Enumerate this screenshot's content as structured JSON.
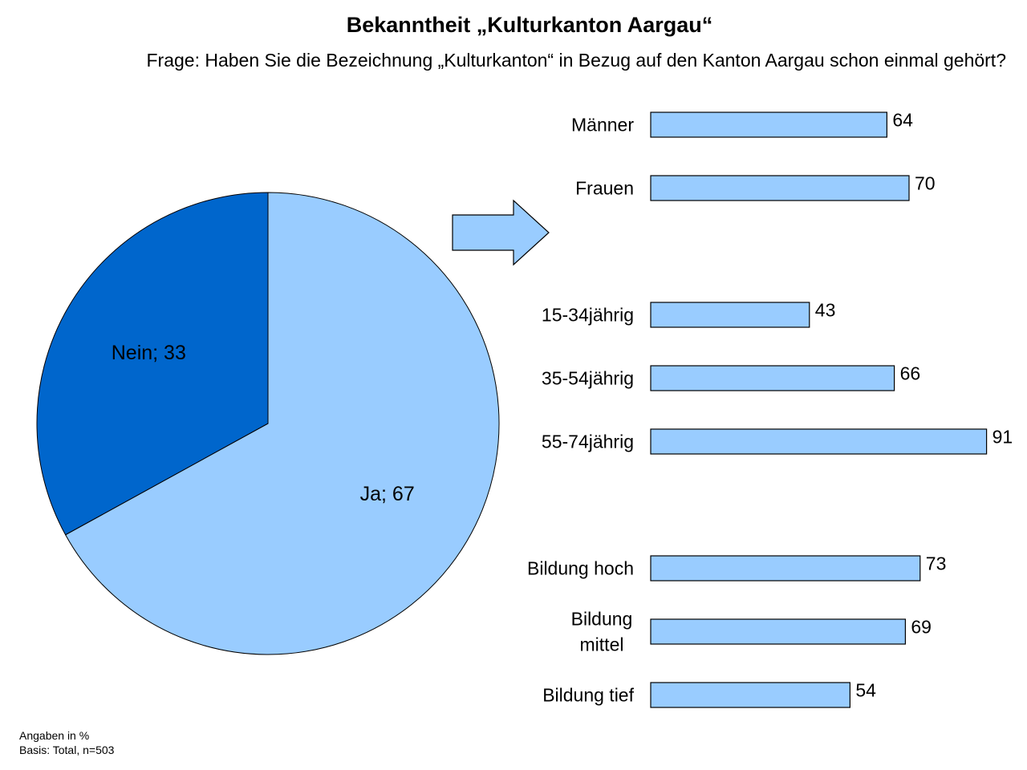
{
  "colors": {
    "pie_ja": "#99ccff",
    "pie_nein": "#0066cc",
    "bar_fill": "#99ccff",
    "outline": "#000000"
  },
  "chart_data": [
    {
      "type": "pie",
      "title": "Bekanntheit „Kulturkanton Aargau“",
      "subtitle": "Frage: Haben Sie die Bezeichnung „Kulturkanton“ in Bezug auf den Kanton Aargau schon einmal gehört?",
      "slices": [
        {
          "label": "Ja; 67",
          "name": "Ja",
          "value": 67
        },
        {
          "label": "Nein; 33",
          "name": "Nein",
          "value": 33
        }
      ]
    },
    {
      "type": "bar",
      "orientation": "horizontal",
      "xlim": [
        0,
        100
      ],
      "groups": [
        {
          "categories": [
            "Männer",
            "Frauen"
          ],
          "values": [
            64,
            70
          ]
        },
        {
          "categories": [
            "15-34jährig",
            "35-54jährig",
            "55-74jährig"
          ],
          "values": [
            43,
            66,
            91
          ]
        },
        {
          "categories": [
            "Bildung hoch",
            "Bildung mittel",
            "Bildung tief"
          ],
          "values": [
            73,
            69,
            54
          ]
        }
      ]
    }
  ],
  "footnote": {
    "line1": "Angaben in %",
    "line2": "Basis: Total, n=503"
  }
}
